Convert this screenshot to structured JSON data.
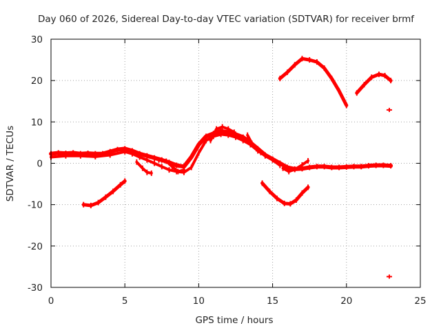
{
  "chart_data": {
    "type": "scatter",
    "title": "Day 060 of 2026, Sidereal Day-to-day VTEC variation (SDTVAR) for receiver brmf",
    "xlabel": "GPS time / hours",
    "ylabel": "SDTVAR / TECUs",
    "xlim": [
      0,
      25
    ],
    "ylim": [
      -30,
      30
    ],
    "xticks": [
      0,
      5,
      10,
      15,
      20,
      25
    ],
    "yticks": [
      -30,
      -20,
      -10,
      0,
      10,
      20,
      30
    ],
    "xtick_labels": [
      "0",
      "5",
      "10",
      "15",
      "20",
      "25"
    ],
    "ytick_labels": [
      "-30",
      "-20",
      "-10",
      "0",
      "10",
      "20",
      "30"
    ],
    "grid": true,
    "color": "#ff0000",
    "series": [
      {
        "name": "main-band-a",
        "width": 6,
        "points": [
          [
            0,
            2.3
          ],
          [
            0.5,
            2.5
          ],
          [
            1,
            2.4
          ],
          [
            1.5,
            2.5
          ],
          [
            2,
            2.3
          ],
          [
            2.5,
            2.4
          ],
          [
            3,
            2.3
          ],
          [
            3.5,
            2.3
          ],
          [
            4,
            2.8
          ],
          [
            4.5,
            3.3
          ],
          [
            5,
            3.5
          ],
          [
            5.5,
            3.0
          ],
          [
            6,
            2.3
          ],
          [
            6.5,
            1.8
          ],
          [
            7,
            1.3
          ],
          [
            7.5,
            0.8
          ],
          [
            8,
            0.2
          ],
          [
            8.5,
            -0.5
          ],
          [
            9,
            -0.8
          ],
          [
            9.5,
            1.5
          ],
          [
            10,
            4.5
          ],
          [
            10.5,
            6.5
          ],
          [
            11,
            7.2
          ],
          [
            11.5,
            7.8
          ],
          [
            12,
            7.5
          ],
          [
            12.5,
            7.0
          ],
          [
            13,
            6.3
          ],
          [
            13.5,
            5.0
          ],
          [
            14,
            3.5
          ],
          [
            14.5,
            2.0
          ],
          [
            15,
            1.0
          ],
          [
            15.5,
            0.0
          ],
          [
            16,
            -1.0
          ],
          [
            16.5,
            -1.4
          ],
          [
            17,
            -1.3
          ],
          [
            17.5,
            -1.0
          ],
          [
            18,
            -0.8
          ],
          [
            18.5,
            -0.8
          ],
          [
            19,
            -1.0
          ],
          [
            19.5,
            -1.0
          ],
          [
            20,
            -0.9
          ],
          [
            20.5,
            -0.8
          ],
          [
            21,
            -0.8
          ],
          [
            21.5,
            -0.6
          ],
          [
            22,
            -0.5
          ],
          [
            22.5,
            -0.5
          ],
          [
            23,
            -0.6
          ]
        ]
      },
      {
        "name": "main-band-b",
        "width": 4,
        "points": [
          [
            0,
            1.5
          ],
          [
            1,
            1.8
          ],
          [
            2,
            1.8
          ],
          [
            3,
            1.6
          ],
          [
            4,
            2.0
          ],
          [
            5,
            2.8
          ],
          [
            5.5,
            2.3
          ],
          [
            6,
            1.5
          ],
          [
            6.5,
            0.8
          ],
          [
            7,
            0.0
          ],
          [
            7.5,
            -0.8
          ],
          [
            8,
            -1.6
          ],
          [
            8.5,
            -2.0
          ],
          [
            9,
            -2.2
          ],
          [
            9.5,
            -1.0
          ],
          [
            10,
            2.5
          ],
          [
            10.5,
            5.5
          ],
          [
            11,
            6.5
          ],
          [
            11.5,
            7.0
          ],
          [
            12,
            6.8
          ],
          [
            12.5,
            6.3
          ],
          [
            13,
            5.5
          ],
          [
            13.5,
            4.5
          ],
          [
            14,
            3.0
          ],
          [
            14.5,
            1.8
          ],
          [
            15,
            0.8
          ],
          [
            15.5,
            -0.5
          ]
        ]
      },
      {
        "name": "hump-11h",
        "width": 4,
        "points": [
          [
            10.8,
            5.5
          ],
          [
            11.2,
            8.3
          ],
          [
            11.6,
            8.8
          ],
          [
            12,
            8.3
          ],
          [
            12.4,
            7.5
          ]
        ]
      },
      {
        "name": "spike-13-14h",
        "width": 4,
        "points": [
          [
            13.3,
            6.8
          ],
          [
            13.6,
            4.8
          ],
          [
            13.9,
            3.5
          ],
          [
            14.2,
            2.6
          ]
        ]
      },
      {
        "name": "branch-6-7h",
        "width": 4,
        "points": [
          [
            5.8,
            0.3
          ],
          [
            6.2,
            -1.2
          ],
          [
            6.5,
            -2.2
          ],
          [
            6.8,
            -2.4
          ]
        ]
      },
      {
        "name": "branch-7-9h",
        "width": 4,
        "points": [
          [
            7.3,
            0.8
          ],
          [
            7.8,
            0.5
          ],
          [
            8.2,
            -0.8
          ],
          [
            8.6,
            -2.0
          ],
          [
            9.0,
            -1.6
          ]
        ]
      },
      {
        "name": "arc-2-5h",
        "width": 5,
        "points": [
          [
            2.2,
            -10.0
          ],
          [
            2.7,
            -10.2
          ],
          [
            3.2,
            -9.5
          ],
          [
            3.7,
            -8.2
          ],
          [
            4.2,
            -6.8
          ],
          [
            4.7,
            -5.2
          ],
          [
            5.0,
            -4.3
          ]
        ]
      },
      {
        "name": "dip-14-17h",
        "width": 5,
        "points": [
          [
            14.3,
            -4.8
          ],
          [
            14.8,
            -6.8
          ],
          [
            15.3,
            -8.5
          ],
          [
            15.8,
            -9.7
          ],
          [
            16.2,
            -9.8
          ],
          [
            16.6,
            -8.9
          ],
          [
            17.0,
            -7.2
          ],
          [
            17.4,
            -5.8
          ]
        ]
      },
      {
        "name": "drop-16-17h",
        "width": 4,
        "points": [
          [
            15.7,
            -1.2
          ],
          [
            16.1,
            -2.0
          ],
          [
            16.5,
            -1.5
          ],
          [
            17.0,
            -0.4
          ],
          [
            17.4,
            0.6
          ]
        ]
      },
      {
        "name": "hump-15-20h",
        "width": 5,
        "points": [
          [
            15.5,
            20.5
          ],
          [
            16.0,
            22.0
          ],
          [
            16.5,
            23.8
          ],
          [
            17.0,
            25.3
          ],
          [
            17.5,
            25.0
          ],
          [
            18.0,
            24.5
          ],
          [
            18.5,
            23.0
          ],
          [
            19.0,
            20.5
          ],
          [
            19.5,
            17.5
          ],
          [
            20.0,
            14.0
          ]
        ]
      },
      {
        "name": "hump-20-23h",
        "width": 5,
        "points": [
          [
            20.7,
            17.0
          ],
          [
            21.2,
            19.0
          ],
          [
            21.7,
            20.8
          ],
          [
            22.2,
            21.5
          ],
          [
            22.6,
            21.2
          ],
          [
            23.0,
            20.0
          ]
        ]
      }
    ],
    "isolated_points": [
      {
        "name": "outlier-upper",
        "x": 22.9,
        "y": 12.9
      },
      {
        "name": "outlier-lower",
        "x": 22.9,
        "y": -27.4
      }
    ]
  }
}
